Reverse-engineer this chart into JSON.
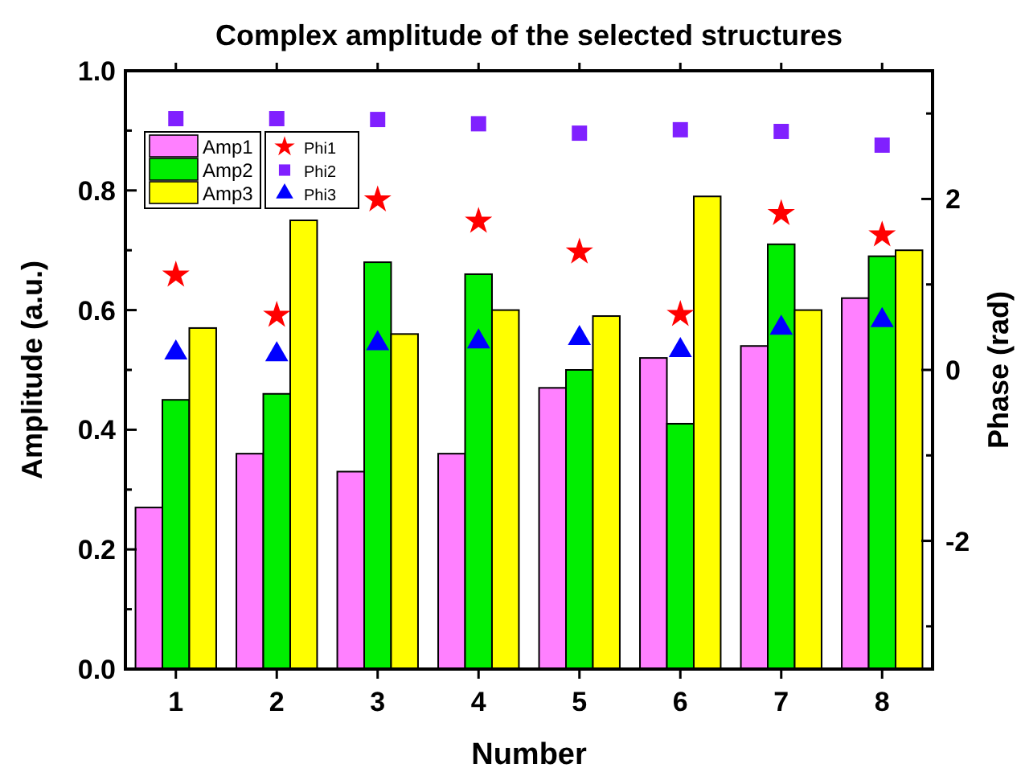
{
  "chart_data": {
    "type": "bar",
    "title": "Complex amplitude of the selected structures",
    "xlabel": "Number",
    "ylabel": "Amplitude (a.u.)",
    "y2label": "Phase (rad)",
    "categories": [
      "1",
      "2",
      "3",
      "4",
      "5",
      "6",
      "7",
      "8"
    ],
    "ylim": [
      0,
      1
    ],
    "yticks": [
      {
        "value": 0,
        "label": "0.0"
      },
      {
        "value": 0.1,
        "label": null
      },
      {
        "value": 0.2,
        "label": "0.2"
      },
      {
        "value": 0.3,
        "label": null
      },
      {
        "value": 0.4,
        "label": "0.4"
      },
      {
        "value": 0.5,
        "label": null
      },
      {
        "value": 0.6,
        "label": "0.6"
      },
      {
        "value": 0.7,
        "label": null
      },
      {
        "value": 0.8,
        "label": "0.8"
      },
      {
        "value": 0.9,
        "label": null
      },
      {
        "value": 1,
        "label": "1.0"
      }
    ],
    "y2lim": [
      -3.5,
      3.5
    ],
    "y2ticks": [
      {
        "value": -3,
        "label": null
      },
      -2,
      {
        "value": -1,
        "label": null
      },
      0,
      {
        "value": 1,
        "label": null
      },
      2,
      {
        "value": 3,
        "label": null
      }
    ],
    "legend": "top left",
    "grid": false,
    "series": [
      {
        "name": "Amp1",
        "color": "#ff80ff",
        "values": [
          0.27,
          0.36,
          0.33,
          0.36,
          0.47,
          0.52,
          0.54,
          0.62
        ]
      },
      {
        "name": "Amp2",
        "color": "#00ee00",
        "values": [
          0.45,
          0.46,
          0.68,
          0.66,
          0.5,
          0.41,
          0.71,
          0.69
        ]
      },
      {
        "name": "Amp3",
        "color": "#ffff00",
        "values": [
          0.57,
          0.75,
          0.56,
          0.6,
          0.59,
          0.79,
          0.6,
          0.7
        ]
      },
      {
        "name": "Phi1",
        "type": "scatter",
        "axis": "y2",
        "marker": "star",
        "color": "#ff0000",
        "x": [
          "1",
          "2",
          "3",
          "4",
          "5",
          "6",
          "7",
          "8"
        ],
        "values": [
          1.11,
          0.64,
          1.99,
          1.74,
          1.38,
          0.65,
          1.83,
          1.58
        ]
      },
      {
        "name": "Phi2",
        "type": "scatter",
        "axis": "y2",
        "marker": "square",
        "color": "#8020ff",
        "x": [
          "1",
          "2",
          "3",
          "4",
          "5",
          "6",
          "7",
          "8"
        ],
        "values": [
          2.94,
          2.94,
          2.93,
          2.88,
          2.77,
          2.81,
          2.79,
          2.63
        ]
      },
      {
        "name": "Phi3",
        "type": "scatter",
        "axis": "y2",
        "marker": "triangle",
        "color": "#0000ff",
        "x": [
          "1",
          "2",
          "3",
          "4",
          "5",
          "6",
          "7",
          "8"
        ],
        "values": [
          0.2,
          0.18,
          0.31,
          0.33,
          0.37,
          0.23,
          0.49,
          0.58
        ]
      }
    ]
  }
}
